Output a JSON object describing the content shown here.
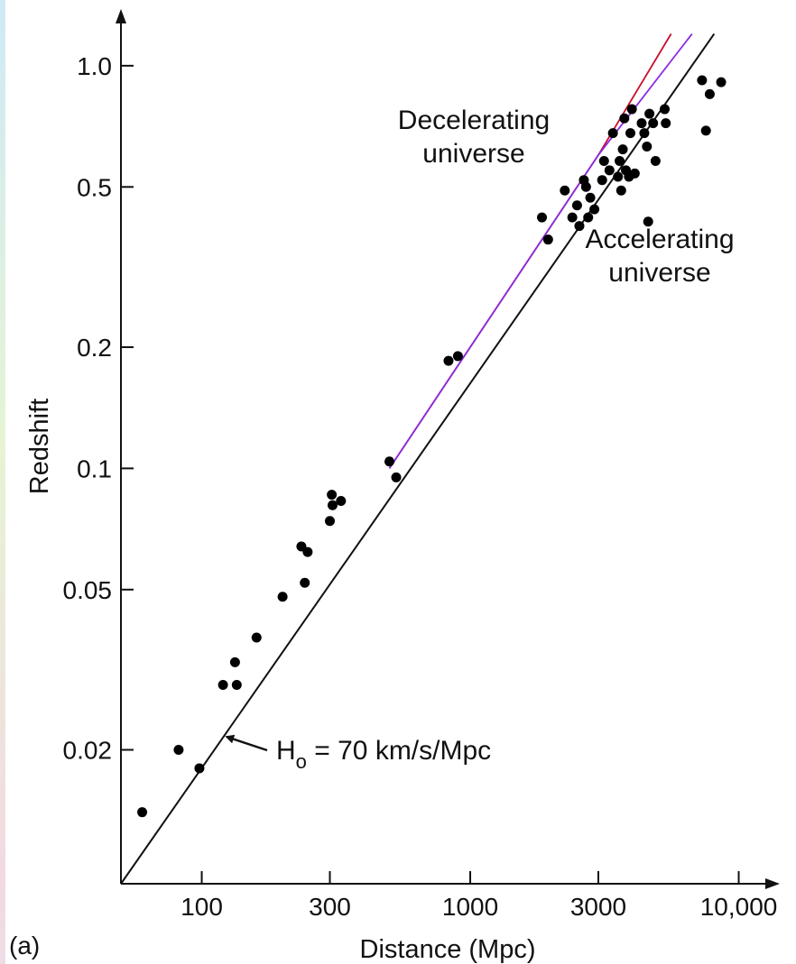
{
  "panel_label": "(a)",
  "chart_data": {
    "type": "scatter",
    "xlabel": "Distance (Mpc)",
    "ylabel": "Redshift",
    "xscale": "log",
    "yscale": "log",
    "xlim": [
      50,
      14000
    ],
    "ylim": [
      0.0093,
      1.3
    ],
    "xticks": [
      {
        "value": 100,
        "label": "100"
      },
      {
        "value": 300,
        "label": "300"
      },
      {
        "value": 1000,
        "label": "1000"
      },
      {
        "value": 3000,
        "label": "3000"
      },
      {
        "value": 10000,
        "label": "10,000"
      }
    ],
    "yticks": [
      {
        "value": 0.02,
        "label": "0.02"
      },
      {
        "value": 0.05,
        "label": "0.05"
      },
      {
        "value": 0.1,
        "label": "0.1"
      },
      {
        "value": 0.2,
        "label": "0.2"
      },
      {
        "value": 0.5,
        "label": "0.5"
      },
      {
        "value": 1.0,
        "label": "1.0"
      }
    ],
    "grid": false,
    "legend": "none",
    "lines": [
      {
        "label": "H_o = 70 km/s/Mpc",
        "color": "#111111",
        "points": [
          [
            50,
            0.0093
          ],
          [
            8100,
            1.2
          ]
        ]
      },
      {
        "label": "Decelerating universe",
        "color": "#c8102e",
        "points": [
          [
            500,
            0.1
          ],
          [
            1500,
            0.3
          ],
          [
            3000,
            0.6
          ],
          [
            5600,
            1.2
          ]
        ]
      },
      {
        "label": "Decelerating universe (alt)",
        "color": "#8a2be2",
        "points": [
          [
            500,
            0.1
          ],
          [
            1500,
            0.3
          ],
          [
            3000,
            0.6
          ],
          [
            6700,
            1.2
          ]
        ]
      }
    ],
    "points": [
      [
        60,
        0.014
      ],
      [
        82,
        0.02
      ],
      [
        98,
        0.018
      ],
      [
        120,
        0.029
      ],
      [
        133,
        0.033
      ],
      [
        135,
        0.029
      ],
      [
        160,
        0.038
      ],
      [
        200,
        0.048
      ],
      [
        235,
        0.064
      ],
      [
        242,
        0.052
      ],
      [
        248,
        0.062
      ],
      [
        300,
        0.074
      ],
      [
        305,
        0.086
      ],
      [
        307,
        0.081
      ],
      [
        330,
        0.083
      ],
      [
        500,
        0.104
      ],
      [
        530,
        0.095
      ],
      [
        830,
        0.185
      ],
      [
        900,
        0.19
      ],
      [
        1850,
        0.42
      ],
      [
        1950,
        0.37
      ],
      [
        2250,
        0.49
      ],
      [
        2400,
        0.42
      ],
      [
        2500,
        0.45
      ],
      [
        2550,
        0.4
      ],
      [
        2650,
        0.52
      ],
      [
        2700,
        0.5
      ],
      [
        2750,
        0.42
      ],
      [
        2800,
        0.47
      ],
      [
        2900,
        0.44
      ],
      [
        3100,
        0.52
      ],
      [
        3150,
        0.58
      ],
      [
        3300,
        0.55
      ],
      [
        3400,
        0.68
      ],
      [
        3550,
        0.53
      ],
      [
        3600,
        0.58
      ],
      [
        3650,
        0.49
      ],
      [
        3700,
        0.62
      ],
      [
        3750,
        0.74
      ],
      [
        3800,
        0.55
      ],
      [
        3900,
        0.53
      ],
      [
        3950,
        0.68
      ],
      [
        4000,
        0.78
      ],
      [
        4100,
        0.54
      ],
      [
        4350,
        0.72
      ],
      [
        4450,
        0.68
      ],
      [
        4550,
        0.63
      ],
      [
        4600,
        0.41
      ],
      [
        4650,
        0.76
      ],
      [
        4800,
        0.72
      ],
      [
        4900,
        0.58
      ],
      [
        5300,
        0.78
      ],
      [
        5350,
        0.72
      ],
      [
        7300,
        0.92
      ],
      [
        7550,
        0.69
      ],
      [
        7800,
        0.85
      ],
      [
        8600,
        0.91
      ]
    ],
    "annotations": [
      {
        "text": [
          "Decelerating",
          "universe"
        ]
      },
      {
        "text": [
          "Accelerating",
          "universe"
        ]
      }
    ],
    "hubble_label": {
      "main": "H",
      "sub": "o",
      "rest": " = 70 km/s/Mpc"
    }
  }
}
